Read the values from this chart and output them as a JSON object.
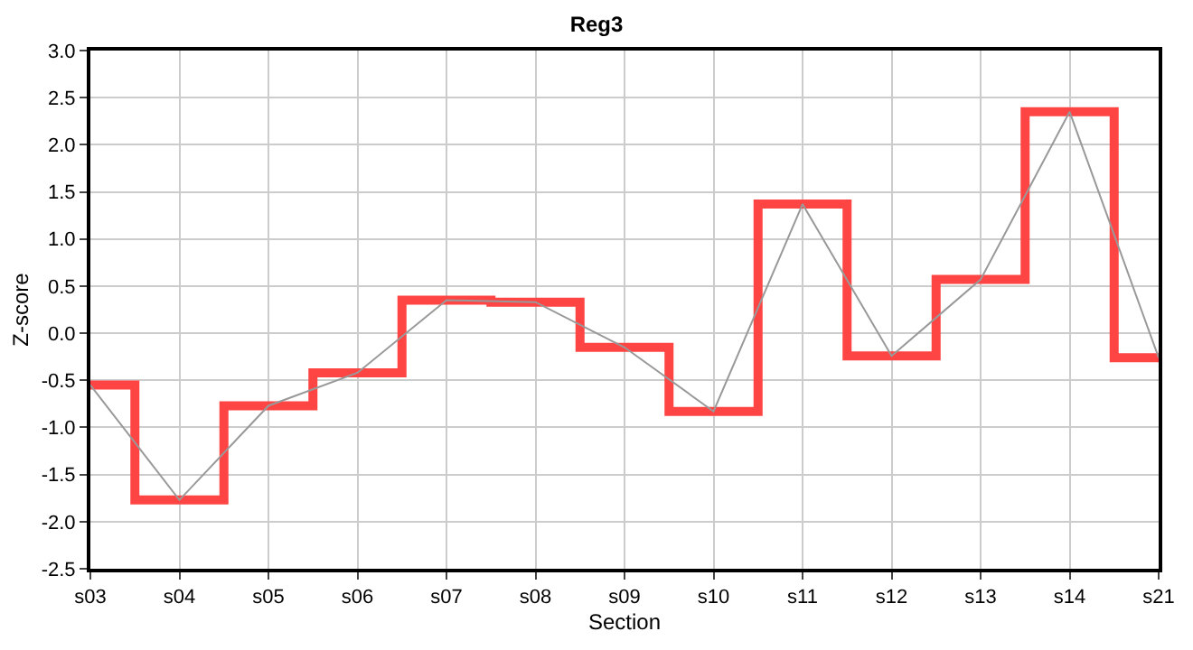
{
  "chart_data": {
    "type": "step",
    "title": "Reg3",
    "xlabel": "Section",
    "ylabel": "Z-score",
    "categories": [
      "s03",
      "s04",
      "s05",
      "s06",
      "s07",
      "s08",
      "s09",
      "s10",
      "s11",
      "s12",
      "s13",
      "s14",
      "s21"
    ],
    "series": [
      {
        "color": "#ff4444",
        "values": [
          -0.55,
          -1.77,
          -0.77,
          -0.42,
          0.35,
          0.33,
          -0.15,
          -0.83,
          1.37,
          -0.24,
          0.57,
          2.35,
          -0.26
        ]
      },
      {
        "type": "line",
        "color": "#999999",
        "values": [
          -0.55,
          -1.77,
          -0.77,
          -0.42,
          0.35,
          0.33,
          -0.15,
          -0.83,
          1.37,
          -0.24,
          0.57,
          2.35,
          -0.26
        ]
      }
    ],
    "ylim": [
      -2.5,
      3.0
    ],
    "yticks": [
      {
        "value": -2.5,
        "label": "-2.5"
      },
      {
        "value": -2.0,
        "label": "-2.0"
      },
      {
        "value": -1.5,
        "label": "-1.5"
      },
      {
        "value": -1.0,
        "label": "-1.0"
      },
      {
        "value": -0.5,
        "label": "-0.5"
      },
      {
        "value": 0.0,
        "label": "0.0"
      },
      {
        "value": 0.5,
        "label": "0.5"
      },
      {
        "value": 1.0,
        "label": "1.0"
      },
      {
        "value": 1.5,
        "label": "1.5"
      },
      {
        "value": 2.0,
        "label": "2.0"
      },
      {
        "value": 2.5,
        "label": "2.5"
      },
      {
        "value": 3.0,
        "label": "3.0"
      }
    ],
    "grid": true,
    "marker": "none"
  }
}
